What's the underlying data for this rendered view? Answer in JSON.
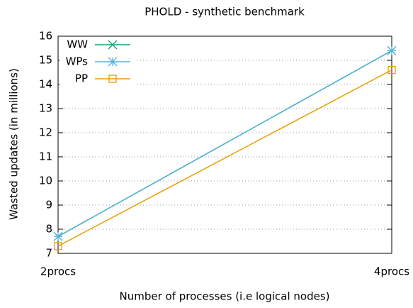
{
  "chart_data": {
    "type": "line",
    "title": "PHOLD - synthetic benchmark",
    "xlabel": "Number of processes (i.e logical nodes)",
    "ylabel": "Wasted updates (in millions)",
    "categories": [
      "2procs",
      "4procs"
    ],
    "series": [
      {
        "name": "WW",
        "color": "#1a9e77",
        "marker": "x",
        "values": [
          7.7,
          15.4
        ]
      },
      {
        "name": "WPs",
        "color": "#56b4d8",
        "marker": "star",
        "values": [
          7.7,
          15.4
        ]
      },
      {
        "name": "PP",
        "color": "#e69f00",
        "marker": "square",
        "values": [
          7.3,
          14.6
        ]
      }
    ],
    "ylim": [
      7,
      16
    ],
    "yticks": [
      7,
      8,
      9,
      10,
      11,
      12,
      13,
      14,
      15,
      16
    ],
    "grid": true,
    "legend": "top-left"
  }
}
